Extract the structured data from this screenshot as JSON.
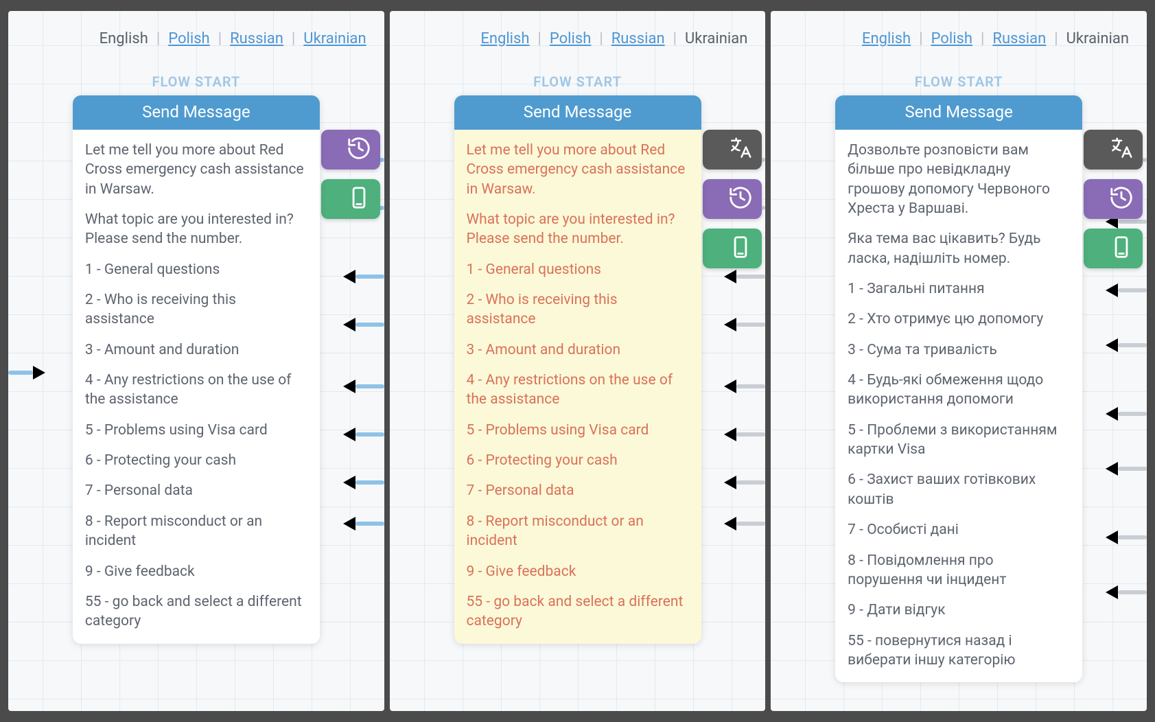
{
  "langs": [
    "English",
    "Polish",
    "Russian",
    "Ukrainian"
  ],
  "sep": "|",
  "flow_start_label": "FLOW START",
  "card_header": "Send Message",
  "body_en": {
    "paras": [
      "Let me tell you more about Red Cross emergency cash assistance in Warsaw.",
      "What topic are you interested in? Please send the number.",
      "1 - General questions",
      "2 - Who is receiving this assistance",
      "3 - Amount and duration",
      "4 - Any restrictions on the use of the assistance",
      "5 - Problems using Visa card",
      "6 - Protecting your cash",
      "7 - Personal data",
      "8 - Report misconduct or an incident",
      "9 - Give feedback",
      "55 - go back and select a different category"
    ]
  },
  "body_uk": {
    "paras": [
      "Дозвольте розповісти вам більше про невідкладну грошову допомогу Червоного Хреста у Варшаві.",
      "Яка тема вас цікавить? Будь ласка, надішліть номер.",
      "1 - Загальні питання",
      "2 - Хто отримує цю допомогу",
      "3 - Сума та тривалість",
      "4 - Будь-які обмеження щодо використання допомоги",
      "5 - Проблеми з використанням картки Visa",
      "6 - Захист ваших готівкових коштів",
      "7 - Особисті дані",
      "8 - Повідомлення про порушення чи інцидент",
      "9 - Дати відгук",
      "55 - повернутися назад і виберати іншу категорію"
    ]
  },
  "panels": [
    {
      "active_lang": "English",
      "arrow_color_cls": "cr-blue",
      "body_key": "body_en",
      "text_cls": "clr-normal",
      "card_highlight": false,
      "show_translate_tab": false,
      "right_arrow_tops": [
        210,
        280,
        380,
        450,
        540,
        610,
        680,
        740
      ],
      "left_arrow_tops": [
        520
      ]
    },
    {
      "active_lang": "Ukrainian",
      "arrow_color_cls": "cr-grey",
      "body_key": "body_en",
      "text_cls": "clr-warn",
      "card_highlight": true,
      "show_translate_tab": true,
      "right_arrow_tops": [
        210,
        280,
        380,
        450,
        540,
        610,
        680,
        740
      ],
      "left_arrow_tops": []
    },
    {
      "active_lang": "Ukrainian",
      "arrow_color_cls": "cr-grey",
      "body_key": "body_uk",
      "text_cls": "clr-normal",
      "card_highlight": false,
      "show_translate_tab": true,
      "right_arrow_tops": [
        210,
        300,
        400,
        480,
        580,
        660,
        760,
        840
      ],
      "left_arrow_tops": []
    }
  ],
  "colors": {
    "background": "#4b4b4b",
    "grid_bg": "#f6f8fa",
    "grid_line": "#e4eaef",
    "header_bg": "#4f9bd0",
    "link": "#4f96d2",
    "flow_label": "#9fc6e5",
    "text_normal": "#5d646e",
    "text_warn": "#d97258",
    "highlight_bg": "#fcf9d9",
    "tab_translate": "#5a5a5a",
    "tab_history": "#8a6bb6",
    "tab_device": "#4eb07c",
    "arrow_blue": "#8ec2e6",
    "arrow_grey": "#c9ced4"
  }
}
